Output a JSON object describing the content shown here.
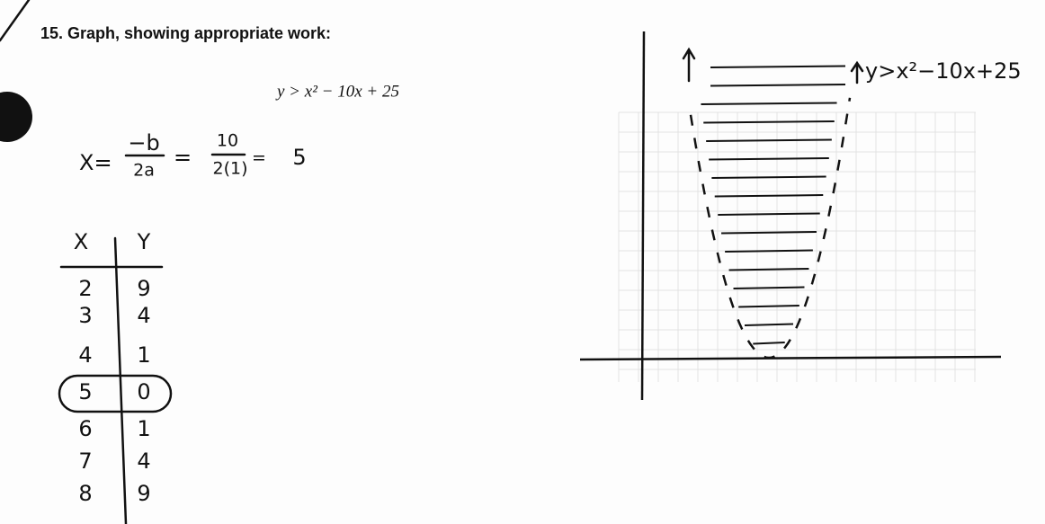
{
  "question": {
    "text": "15. Graph, showing appropriate work:",
    "equation": "y > x² − 10x + 25"
  },
  "vertex_work": {
    "lhs": "X=",
    "num1": "−b",
    "den1": "2a",
    "eq1": "=",
    "num2": "10",
    "den2": "2(1)",
    "eq2": "=",
    "result": "5"
  },
  "table": {
    "headers": [
      "X",
      "Y"
    ],
    "rows": [
      [
        2,
        9
      ],
      [
        3,
        4
      ],
      [
        4,
        1
      ],
      [
        5,
        0
      ],
      [
        6,
        1
      ],
      [
        7,
        4
      ],
      [
        8,
        9
      ]
    ]
  },
  "graph": {
    "label": "y>x²−10x+25"
  }
}
